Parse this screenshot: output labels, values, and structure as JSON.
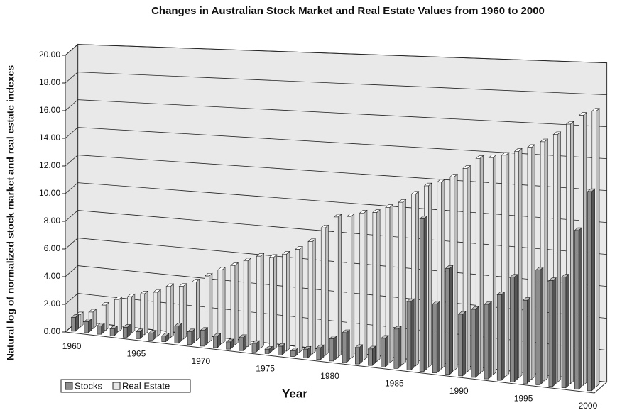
{
  "chart_data": {
    "type": "bar3d",
    "title": "Changes in Australian Stock Market and Real Estate Values from 1960 to 2000",
    "x_label": "Year",
    "y_label": "Natural log of normalized stock market and real estate indexes",
    "categories": [
      "1960",
      null,
      null,
      null,
      null,
      "1965",
      null,
      null,
      null,
      null,
      "1970",
      null,
      null,
      null,
      null,
      "1975",
      null,
      null,
      null,
      null,
      "1980",
      null,
      null,
      null,
      null,
      "1985",
      null,
      null,
      null,
      null,
      "1990",
      null,
      null,
      null,
      null,
      "1995",
      null,
      null,
      null,
      null,
      "2000"
    ],
    "series": [
      {
        "name": "Stocks",
        "color": "#8c8c8c",
        "values": [
          1.0,
          0.8,
          0.6,
          0.5,
          0.7,
          0.5,
          0.5,
          0.4,
          1.2,
          0.9,
          1.1,
          0.8,
          0.5,
          0.9,
          0.6,
          0.3,
          0.6,
          0.4,
          0.6,
          0.8,
          1.5,
          2.0,
          1.1,
          1.1,
          1.9,
          2.6,
          4.5,
          10.0,
          4.5,
          6.9,
          4.0,
          4.4,
          4.8,
          5.5,
          6.7,
          5.3,
          7.3,
          6.7,
          7.0,
          10.0,
          12.5
        ]
      },
      {
        "name": "Real Estate",
        "color": "#e8e8e8",
        "values": [
          0.9,
          1.2,
          1.8,
          2.3,
          2.6,
          2.9,
          3.1,
          3.6,
          3.7,
          4.1,
          4.6,
          5.1,
          5.5,
          5.9,
          6.3,
          6.3,
          6.6,
          7.0,
          7.6,
          8.6,
          9.4,
          9.5,
          9.8,
          9.9,
          10.3,
          10.7,
          11.3,
          11.9,
          12.2,
          12.6,
          13.2,
          13.9,
          14.0,
          14.2,
          14.5,
          14.8,
          15.2,
          15.7,
          16.4,
          17.0,
          17.3
        ]
      }
    ],
    "ylim": [
      0,
      20
    ],
    "yticks": [
      {
        "value": 0,
        "label": "0.00"
      },
      {
        "value": 2,
        "label": "2.00"
      },
      {
        "value": 4,
        "label": "4.00"
      },
      {
        "value": 6,
        "label": "6.00"
      },
      {
        "value": 8,
        "label": "8.00"
      },
      {
        "value": 10,
        "label": "10.00"
      },
      {
        "value": 12,
        "label": "12.00"
      },
      {
        "value": 14,
        "label": "14.00"
      },
      {
        "value": 16,
        "label": "16.00"
      },
      {
        "value": 18,
        "label": "18.00"
      },
      {
        "value": 20,
        "label": "20.00"
      }
    ],
    "grid": true,
    "legend": "bottom-left"
  }
}
